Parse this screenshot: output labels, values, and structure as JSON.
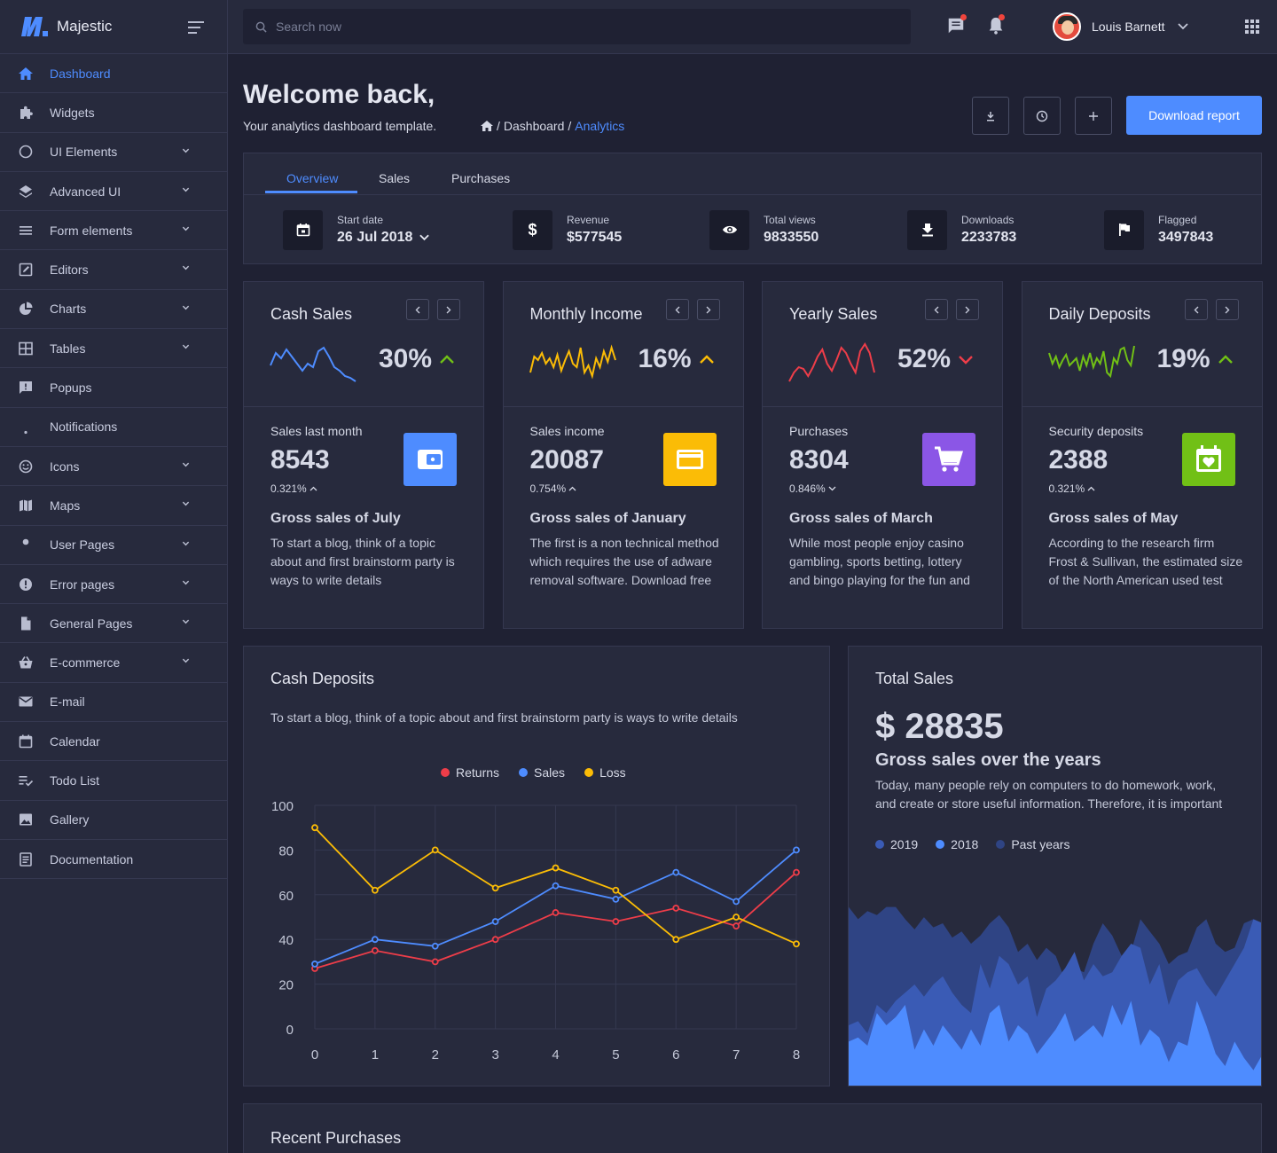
{
  "brand": {
    "name": "Majestic"
  },
  "sidebar": {
    "items": [
      {
        "label": "Dashboard",
        "icon": "home-icon",
        "chevron": false,
        "active": true
      },
      {
        "label": "Widgets",
        "icon": "puzzle-icon",
        "chevron": false
      },
      {
        "label": "UI Elements",
        "icon": "circle-icon",
        "chevron": true
      },
      {
        "label": "Advanced UI",
        "icon": "layers-icon",
        "chevron": true
      },
      {
        "label": "Form elements",
        "icon": "list-icon",
        "chevron": true
      },
      {
        "label": "Editors",
        "icon": "edit-box-icon",
        "chevron": true
      },
      {
        "label": "Charts",
        "icon": "pie-chart-icon",
        "chevron": true
      },
      {
        "label": "Tables",
        "icon": "table-icon",
        "chevron": true
      },
      {
        "label": "Popups",
        "icon": "message-alert-icon",
        "chevron": false
      },
      {
        "label": "Notifications",
        "icon": "bell-icon",
        "chevron": false
      },
      {
        "label": "Icons",
        "icon": "smiley-icon",
        "chevron": true
      },
      {
        "label": "Maps",
        "icon": "map-icon",
        "chevron": true
      },
      {
        "label": "User Pages",
        "icon": "user-icon",
        "chevron": true
      },
      {
        "label": "Error pages",
        "icon": "error-icon",
        "chevron": true
      },
      {
        "label": "General Pages",
        "icon": "file-icon",
        "chevron": true
      },
      {
        "label": "E-commerce",
        "icon": "basket-icon",
        "chevron": true
      },
      {
        "label": "E-mail",
        "icon": "mail-icon",
        "chevron": false
      },
      {
        "label": "Calendar",
        "icon": "calendar-icon",
        "chevron": false
      },
      {
        "label": "Todo List",
        "icon": "checklist-icon",
        "chevron": false
      },
      {
        "label": "Gallery",
        "icon": "image-icon",
        "chevron": false
      },
      {
        "label": "Documentation",
        "icon": "document-icon",
        "chevron": false
      }
    ]
  },
  "topbar": {
    "search_placeholder": "Search now",
    "user_name": "Louis Barnett"
  },
  "header": {
    "title": "Welcome back,",
    "subtitle": "Your analytics dashboard template.",
    "breadcrumb": [
      "Dashboard",
      "Analytics"
    ],
    "download_label": "Download report"
  },
  "tabs": {
    "items": [
      "Overview",
      "Sales",
      "Purchases"
    ],
    "stats": [
      {
        "label": "Start date",
        "value": "26 Jul 2018",
        "icon": "calendar-icon"
      },
      {
        "label": "Revenue",
        "value": "$577545",
        "icon": "dollar-icon"
      },
      {
        "label": "Total views",
        "value": "9833550",
        "icon": "eye-icon"
      },
      {
        "label": "Downloads",
        "value": "2233783",
        "icon": "download-icon"
      },
      {
        "label": "Flagged",
        "value": "3497843",
        "icon": "flag-icon"
      }
    ]
  },
  "kpis": [
    {
      "title": "Cash Sales",
      "pct": "30%",
      "trend": "up",
      "spark_color": "#4e8cff",
      "label": "Sales last month",
      "value": "8543",
      "change": "0.321%",
      "change_dir": "up",
      "icon": "wallet-icon",
      "icon_bg": "#4e8cff",
      "heading": "Gross sales of July",
      "desc": "To start a blog, think of a topic about and first brainstorm party is ways to write details"
    },
    {
      "title": "Monthly Income",
      "pct": "16%",
      "trend": "up",
      "spark_color": "#fbbc06",
      "label": "Sales income",
      "value": "20087",
      "change": "0.754%",
      "change_dir": "up",
      "icon": "credit-card-icon",
      "icon_bg": "#fbbc06",
      "heading": "Gross sales of January",
      "desc": "The first is a non technical method which requires the use of adware removal software. Download free"
    },
    {
      "title": "Yearly Sales",
      "pct": "52%",
      "trend": "down",
      "spark_color": "#ee3d49",
      "label": "Purchases",
      "value": "8304",
      "change": "0.846%",
      "change_dir": "down",
      "icon": "cart-icon",
      "icon_bg": "#8b56e6",
      "heading": "Gross sales of March",
      "desc": "While most people enjoy casino gambling, sports betting, lottery and bingo playing for the fun and"
    },
    {
      "title": "Daily Deposits",
      "pct": "19%",
      "trend": "up",
      "spark_color": "#71c016",
      "label": "Security deposits",
      "value": "2388",
      "change": "0.321%",
      "change_dir": "up",
      "icon": "calendar-heart-icon",
      "icon_bg": "#71c016",
      "heading": "Gross sales of May",
      "desc": "According to the research firm Frost & Sullivan, the estimated size of the North American used test"
    }
  ],
  "cash_deposits": {
    "title": "Cash Deposits",
    "desc": "To start a blog, think of a topic about and first brainstorm party is ways to write details"
  },
  "total_sales": {
    "title": "Total Sales",
    "amount": "$ 28835",
    "heading": "Gross sales over the years",
    "desc": "Today, many people rely on computers to do homework, work, and create or store useful information. Therefore, it is important",
    "legend": [
      "2019",
      "2018",
      "Past years"
    ]
  },
  "recent": {
    "title": "Recent Purchases"
  },
  "chart_data": [
    {
      "type": "line",
      "x": [
        0,
        1,
        2,
        3,
        4,
        5,
        6,
        7,
        8
      ],
      "ylim": [
        0,
        100
      ],
      "yticks": [
        0,
        20,
        40,
        60,
        80,
        100
      ],
      "series": [
        {
          "name": "Returns",
          "color": "#ee3d49",
          "values": [
            27,
            35,
            30,
            40,
            52,
            48,
            54,
            46,
            70
          ]
        },
        {
          "name": "Sales",
          "color": "#4e8cff",
          "values": [
            29,
            40,
            37,
            48,
            64,
            58,
            70,
            57,
            80
          ]
        },
        {
          "name": "Loss",
          "color": "#fbbc06",
          "values": [
            90,
            62,
            80,
            63,
            72,
            62,
            40,
            50,
            38
          ]
        }
      ],
      "legend": "top-center",
      "grid": true
    },
    {
      "type": "area",
      "series": [
        {
          "name": "Past years",
          "color": "#2f4484",
          "values": [
            88,
            82,
            86,
            84,
            88,
            88,
            82,
            77,
            83,
            78,
            80,
            73,
            76,
            70,
            74,
            80,
            84,
            78,
            66,
            70,
            62,
            68,
            64,
            52,
            58,
            56,
            70,
            80,
            74,
            64,
            66,
            82,
            76,
            70,
            60,
            64,
            66,
            78,
            82,
            70,
            66,
            68,
            80,
            82,
            80
          ]
        },
        {
          "name": "2018",
          "color": "#3a5bb5",
          "values": [
            30,
            32,
            26,
            40,
            36,
            42,
            46,
            50,
            44,
            50,
            54,
            46,
            40,
            36,
            60,
            48,
            64,
            60,
            50,
            54,
            34,
            48,
            52,
            58,
            66,
            52,
            60,
            54,
            56,
            64,
            70,
            68,
            50,
            60,
            40,
            52,
            56,
            58,
            50,
            44,
            52,
            60,
            68,
            82,
            80
          ]
        },
        {
          "name": "2019",
          "color": "#4e8cff",
          "values": [
            22,
            24,
            20,
            36,
            30,
            34,
            40,
            18,
            28,
            20,
            30,
            24,
            18,
            28,
            20,
            36,
            40,
            22,
            30,
            26,
            16,
            22,
            28,
            36,
            22,
            26,
            30,
            24,
            40,
            30,
            42,
            20,
            28,
            24,
            12,
            22,
            20,
            42,
            30,
            16,
            10,
            22,
            14,
            8,
            16
          ]
        }
      ]
    }
  ]
}
